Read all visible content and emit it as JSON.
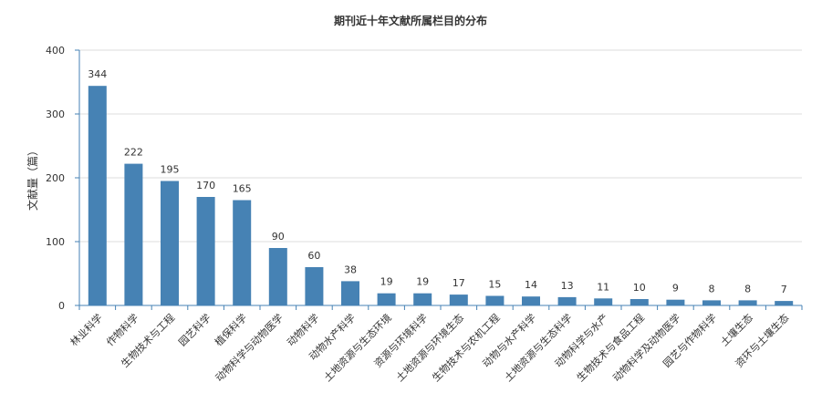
{
  "chart_data": {
    "type": "bar",
    "title": "期刊近十年文献所属栏目的分布",
    "xlabel": "",
    "ylabel": "文献量（篇）",
    "ylim": [
      0,
      400
    ],
    "yticks": [
      0,
      100,
      200,
      300,
      400
    ],
    "grid": true,
    "bar_color": "#4682B4",
    "categories": [
      "林业科学",
      "作物科学",
      "生物技术与工程",
      "园艺科学",
      "植保科学",
      "动物科学与动物医学",
      "动物科学",
      "动物水产科学",
      "土地资源与生态环境",
      "资源与环境科学",
      "土地资源与环境生态",
      "生物技术与农机工程",
      "动物与水产科学",
      "土地资源与生态科学",
      "动物科学与水产",
      "生物技术与食品工程",
      "动物科学及动物医学",
      "园艺与作物科学",
      "土壤生态",
      "资环与土壤生态"
    ],
    "values": [
      344,
      222,
      195,
      170,
      165,
      90,
      60,
      38,
      19,
      19,
      17,
      15,
      14,
      13,
      11,
      10,
      9,
      8,
      8,
      7
    ]
  }
}
